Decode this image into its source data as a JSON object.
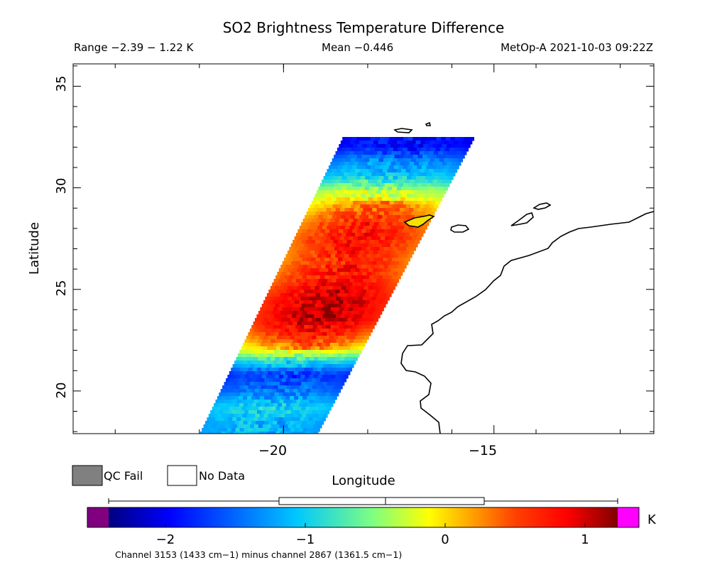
{
  "header": {
    "title": "SO2 Brightness Temperature Difference",
    "range": "Range −2.39 − 1.22 K",
    "mean": "Mean −0.446",
    "satellite": "MetOp-A 2021-10-03 09:22Z"
  },
  "axes": {
    "ylabel": "Latitude",
    "xlabel": "Longitude",
    "y_ticks": [
      "35",
      "30",
      "25",
      "20"
    ],
    "x_ticks": [
      "−20",
      "−15"
    ]
  },
  "legend": {
    "qc_fail": "QC Fail",
    "no_data": "No Data",
    "qc_fail_color": "#808080",
    "no_data_color": "#ffffff"
  },
  "colorbar": {
    "unit": "K",
    "ticks": [
      "−2",
      "−1",
      "0",
      "1"
    ],
    "below_color": "#800080",
    "above_color": "#ff00ff",
    "caption": "Channel 3153 (1433 cm−1) minus channel 2867 (1361.5 cm−1)"
  },
  "chart_data": {
    "type": "heatmap",
    "title": "SO2 Brightness Temperature Difference",
    "xlabel": "Longitude",
    "ylabel": "Latitude",
    "xlim": [
      -25,
      -11.2
    ],
    "ylim": [
      17.9,
      36.1
    ],
    "x_ticks": [
      -20,
      -15
    ],
    "y_ticks": [
      20,
      25,
      30,
      35
    ],
    "color_range": [
      -2.55,
      1.3
    ],
    "value_range": [
      -2.39,
      1.22
    ],
    "mean": -0.446,
    "unit": "K",
    "satellite": "MetOp-A",
    "time": "2021-10-03 09:22Z",
    "swath_bands": [
      {
        "lat": 32.1,
        "value": -1.9
      },
      {
        "lat": 31.3,
        "value": -1.3
      },
      {
        "lat": 30.5,
        "value": -0.9
      },
      {
        "lat": 29.8,
        "value": -0.2
      },
      {
        "lat": 29.0,
        "value": 0.2
      },
      {
        "lat": 28.3,
        "value": 0.5
      },
      {
        "lat": 27.5,
        "value": 0.6
      },
      {
        "lat": 26.5,
        "value": 0.5
      },
      {
        "lat": 25.5,
        "value": 0.6
      },
      {
        "lat": 24.5,
        "value": 0.9
      },
      {
        "lat": 23.5,
        "value": 0.9
      },
      {
        "lat": 22.7,
        "value": 0.5
      },
      {
        "lat": 22.0,
        "value": 0.0
      },
      {
        "lat": 21.5,
        "value": -0.8
      },
      {
        "lat": 20.8,
        "value": -1.7
      },
      {
        "lat": 20.0,
        "value": -1.4
      },
      {
        "lat": 19.2,
        "value": -0.9
      },
      {
        "lat": 18.4,
        "value": -1.1
      }
    ],
    "boxplot": {
      "min": -2.39,
      "q1": -1.2,
      "median": -0.42,
      "q3": 0.28,
      "max": 1.22
    }
  }
}
